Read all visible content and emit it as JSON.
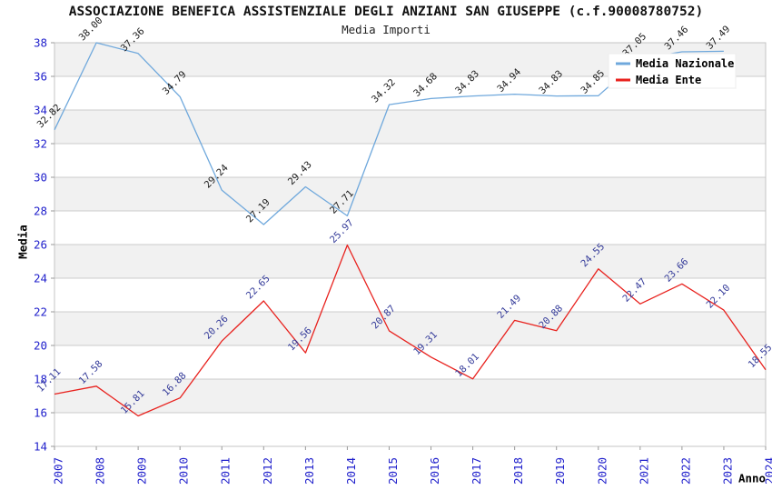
{
  "chart_data": {
    "type": "line",
    "title": "ASSOCIAZIONE BENEFICA ASSISTENZIALE DEGLI ANZIANI SAN GIUSEPPE (c.f.90008780752)",
    "subtitle": "Media Importi",
    "xlabel": "Anno",
    "ylabel": "Media",
    "x": [
      "2007",
      "2008",
      "2009",
      "2010",
      "2011",
      "2012",
      "2013",
      "2014",
      "2015",
      "2016",
      "2017",
      "2018",
      "2019",
      "2020",
      "2021",
      "2022",
      "2023",
      "2024"
    ],
    "ylim": [
      14,
      38
    ],
    "ytick_step": 2,
    "grid": "horizontal",
    "banded_background": true,
    "legend_position": "top-right",
    "series": [
      {
        "name": "Media Nazionale",
        "color": "#6fa8dc",
        "label_color": "#1a1a1a",
        "values": [
          32.82,
          38.0,
          37.36,
          34.79,
          29.24,
          27.19,
          29.43,
          27.71,
          34.32,
          34.68,
          34.83,
          34.94,
          34.83,
          34.85,
          37.05,
          37.46,
          37.49,
          null
        ]
      },
      {
        "name": "Media Ente",
        "color": "#e8211d",
        "label_color": "#333a99",
        "values": [
          17.11,
          17.58,
          15.81,
          16.88,
          20.26,
          22.65,
          19.56,
          25.97,
          20.87,
          19.31,
          18.01,
          21.49,
          20.88,
          24.55,
          22.47,
          23.66,
          22.1,
          18.55
        ]
      }
    ],
    "colors": {
      "tick_label": "#2222cc",
      "band_fill": "#f1f1f1",
      "gridline": "#cccccc",
      "plot_border": "#c4c4c4",
      "axis_tick": "#999999",
      "axis_title": "#000000",
      "legend_bg": "#ffffff",
      "legend_border": "#ededed"
    }
  }
}
